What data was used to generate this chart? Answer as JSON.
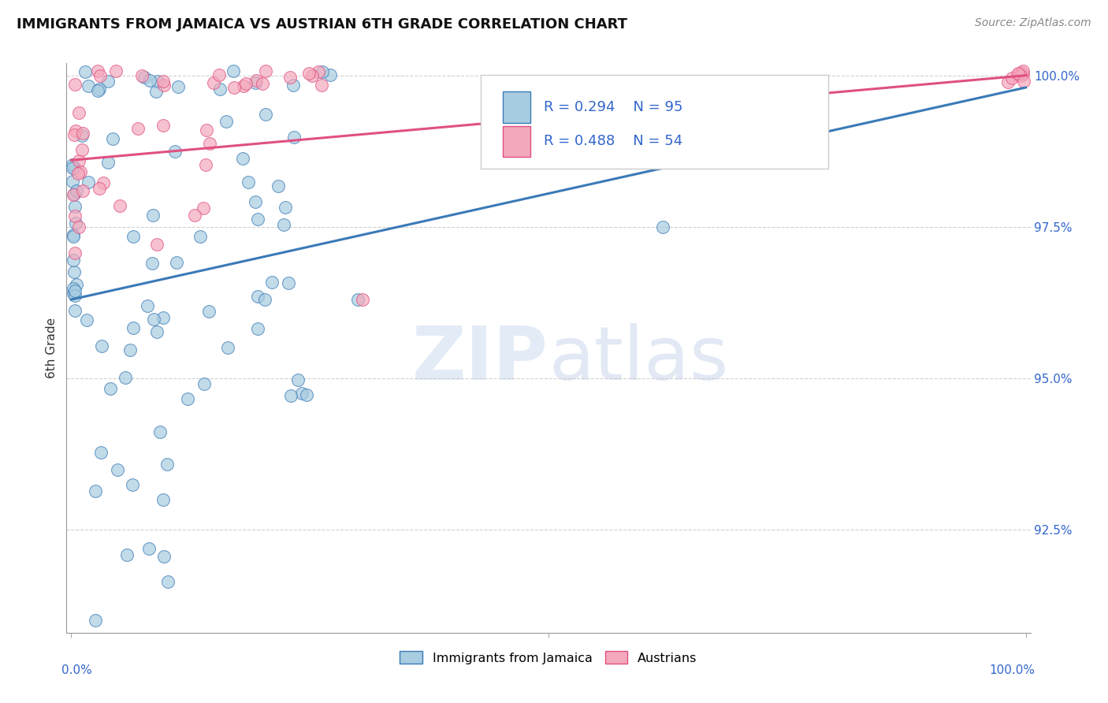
{
  "title": "IMMIGRANTS FROM JAMAICA VS AUSTRIAN 6TH GRADE CORRELATION CHART",
  "source": "Source: ZipAtlas.com",
  "ylabel": "6th Grade",
  "ytick_labels": [
    "92.5%",
    "95.0%",
    "97.5%",
    "100.0%"
  ],
  "ytick_values": [
    0.925,
    0.95,
    0.975,
    1.0
  ],
  "legend_label1": "Immigrants from Jamaica",
  "legend_label2": "Austrians",
  "r1": 0.294,
  "n1": 95,
  "r2": 0.488,
  "n2": 54,
  "color_blue": "#a8cce0",
  "color_pink": "#f4a8bc",
  "color_blue_dark": "#3a7ab8",
  "color_pink_dark": "#e05080",
  "color_blue_line": "#3a7ab8",
  "color_pink_line": "#e05080",
  "xlim": [
    -0.005,
    1.005
  ],
  "ylim": [
    0.908,
    1.002
  ],
  "blue_line_x0": 0.0,
  "blue_line_y0": 0.963,
  "blue_line_x1": 1.0,
  "blue_line_y1": 0.998,
  "pink_line_x0": 0.0,
  "pink_line_y0": 0.986,
  "pink_line_x1": 1.0,
  "pink_line_y1": 1.0
}
